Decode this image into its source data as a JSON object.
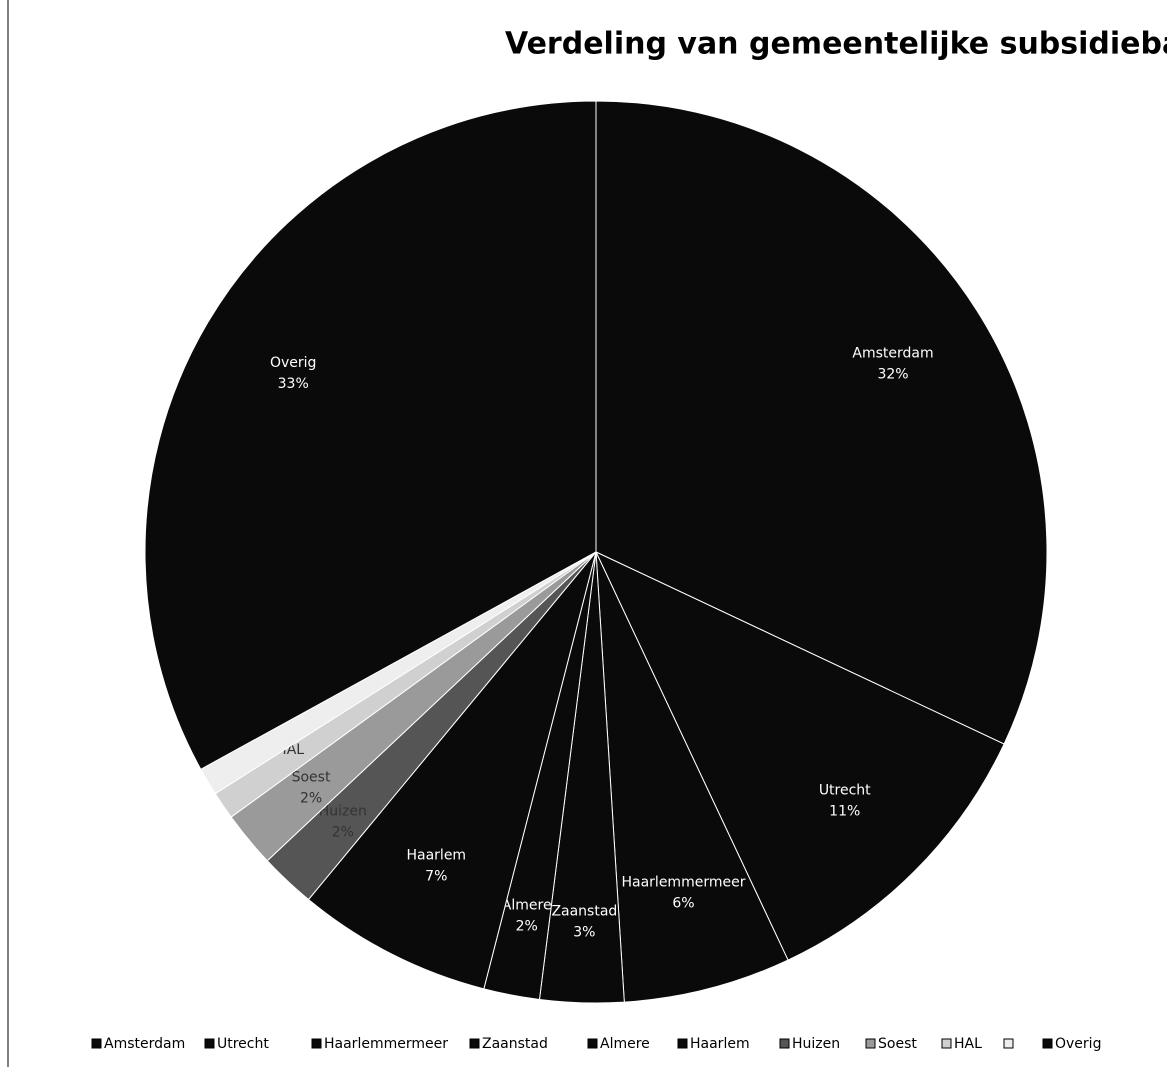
{
  "chart_data": {
    "type": "pie",
    "title": "Verdeling van gemeentelijke subsidiebaten",
    "categories": [
      "Amsterdam",
      "Utrecht",
      "Haarlemmermeer",
      "Zaanstad",
      "Almere",
      "Haarlem",
      "Huizen",
      "Soest",
      "HAL",
      null,
      "Overig"
    ],
    "values": [
      32,
      11,
      6,
      3,
      2,
      7,
      2,
      2,
      1,
      1,
      33
    ],
    "value_labels": [
      "32%",
      "11%",
      "6%",
      "3%",
      "2%",
      "7%",
      "2%",
      "2%",
      null,
      null,
      "33%"
    ],
    "colors": [
      "#0a0a0a",
      "#0a0a0a",
      "#0a0a0a",
      "#0a0a0a",
      "#0a0a0a",
      "#0a0a0a",
      "#555555",
      "#9a9a9a",
      "#d0d0d0",
      "#eeeeee",
      "#0a0a0a"
    ],
    "legend": "bottom"
  }
}
